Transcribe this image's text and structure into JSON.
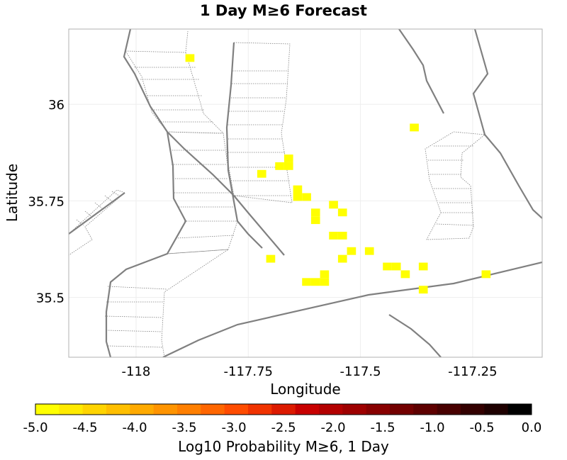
{
  "title": "1 Day M≥6 Forecast",
  "map": {
    "xlabel": "Longitude",
    "ylabel": "Latitude",
    "xlim": [
      -118.15,
      -117.095
    ],
    "ylim": [
      35.345,
      36.195
    ],
    "x_ticks": [
      {
        "value": -118.0,
        "label": "-118"
      },
      {
        "value": -117.75,
        "label": "-117.75"
      },
      {
        "value": -117.5,
        "label": "-117.5"
      },
      {
        "value": -117.25,
        "label": "-117.25"
      }
    ],
    "y_ticks": [
      {
        "value": 35.5,
        "label": "35.5"
      },
      {
        "value": 35.75,
        "label": "35.75"
      },
      {
        "value": 36.0,
        "label": "36"
      }
    ],
    "cell_size_deg": 0.02,
    "cell_color": "#ffff00",
    "fault_color": "#808080",
    "hatch_color": "#808080",
    "forecast_cells": [
      {
        "lon": -117.88,
        "lat": 36.12
      },
      {
        "lon": -117.38,
        "lat": 35.94
      },
      {
        "lon": -117.66,
        "lat": 35.86
      },
      {
        "lon": -117.66,
        "lat": 35.84
      },
      {
        "lon": -117.68,
        "lat": 35.84
      },
      {
        "lon": -117.72,
        "lat": 35.82
      },
      {
        "lon": -117.64,
        "lat": 35.78
      },
      {
        "lon": -117.64,
        "lat": 35.76
      },
      {
        "lon": -117.62,
        "lat": 35.76
      },
      {
        "lon": -117.56,
        "lat": 35.74
      },
      {
        "lon": -117.54,
        "lat": 35.72
      },
      {
        "lon": -117.6,
        "lat": 35.72
      },
      {
        "lon": -117.6,
        "lat": 35.7
      },
      {
        "lon": -117.56,
        "lat": 35.66
      },
      {
        "lon": -117.54,
        "lat": 35.66
      },
      {
        "lon": -117.52,
        "lat": 35.62
      },
      {
        "lon": -117.48,
        "lat": 35.62
      },
      {
        "lon": -117.54,
        "lat": 35.6
      },
      {
        "lon": -117.7,
        "lat": 35.6
      },
      {
        "lon": -117.44,
        "lat": 35.58
      },
      {
        "lon": -117.42,
        "lat": 35.58
      },
      {
        "lon": -117.36,
        "lat": 35.58
      },
      {
        "lon": -117.4,
        "lat": 35.56
      },
      {
        "lon": -117.22,
        "lat": 35.56
      },
      {
        "lon": -117.58,
        "lat": 35.56
      },
      {
        "lon": -117.58,
        "lat": 35.54
      },
      {
        "lon": -117.6,
        "lat": 35.54
      },
      {
        "lon": -117.62,
        "lat": 35.54
      },
      {
        "lon": -117.36,
        "lat": 35.52
      }
    ]
  },
  "colorbar": {
    "label": "Log10 Probability M≥6, 1 Day",
    "min": -5.0,
    "max": 0.0,
    "ticks": [
      "-5.0",
      "-4.5",
      "-4.0",
      "-3.5",
      "-3.0",
      "-2.5",
      "-2.0",
      "-1.5",
      "-1.0",
      "-0.5",
      "0.0"
    ],
    "colors": [
      "#ffff00",
      "#ffea00",
      "#ffd400",
      "#ffbf00",
      "#ffaa00",
      "#ff9400",
      "#ff7f00",
      "#ff6600",
      "#ff4c00",
      "#f03300",
      "#dc1a00",
      "#c80000",
      "#b30000",
      "#9e0000",
      "#880000",
      "#730000",
      "#5e0000",
      "#480000",
      "#330000",
      "#1e0000",
      "#000000"
    ]
  }
}
